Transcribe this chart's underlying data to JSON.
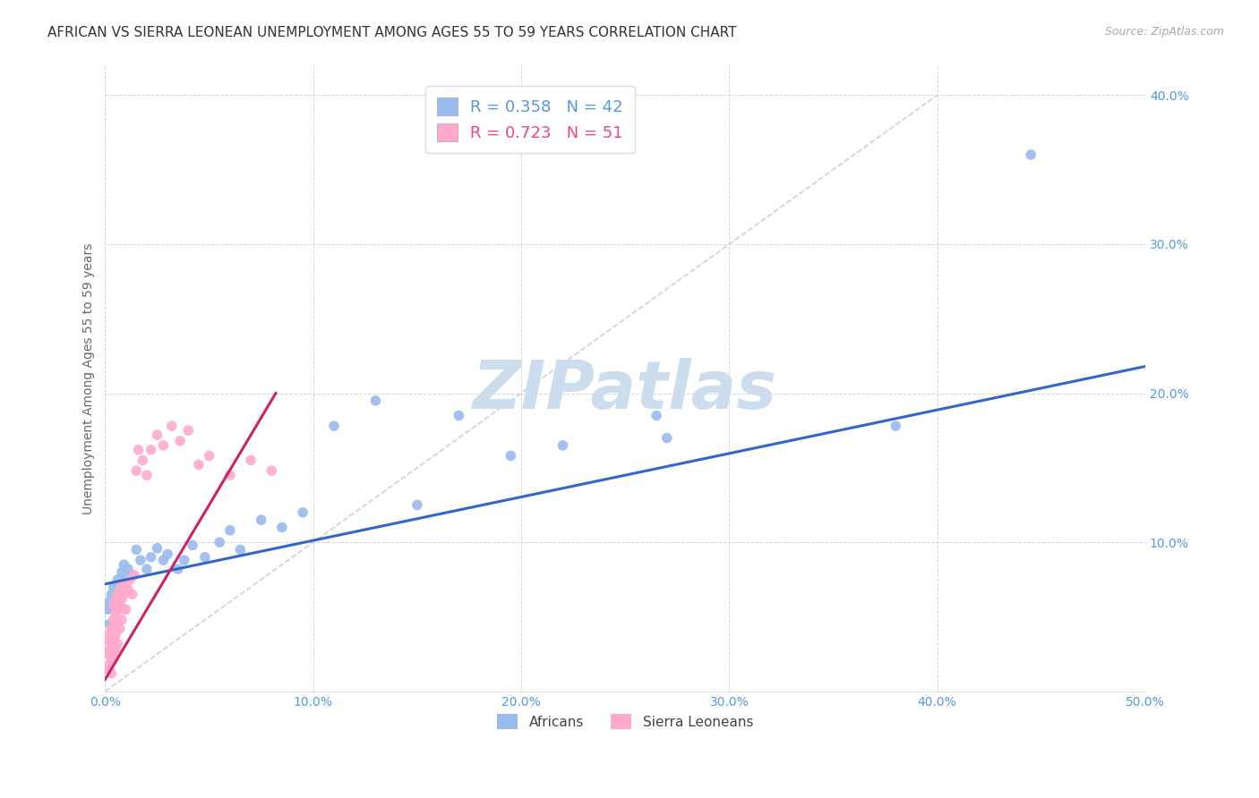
{
  "title": "AFRICAN VS SIERRA LEONEAN UNEMPLOYMENT AMONG AGES 55 TO 59 YEARS CORRELATION CHART",
  "source": "Source: ZipAtlas.com",
  "ylabel": "Unemployment Among Ages 55 to 59 years",
  "xlim": [
    0.0,
    0.5
  ],
  "ylim": [
    0.0,
    0.42
  ],
  "xticks": [
    0.0,
    0.1,
    0.2,
    0.3,
    0.4,
    0.5
  ],
  "yticks": [
    0.0,
    0.1,
    0.2,
    0.3,
    0.4
  ],
  "xtick_labels": [
    "0.0%",
    "10.0%",
    "20.0%",
    "30.0%",
    "40.0%",
    "50.0%"
  ],
  "ytick_labels": [
    "",
    "10.0%",
    "20.0%",
    "30.0%",
    "40.0%"
  ],
  "background_color": "#ffffff",
  "grid_color": "#cccccc",
  "title_color": "#333333",
  "title_fontsize": 11,
  "source_color": "#aaaaaa",
  "R1": "0.358",
  "N1": "42",
  "R2": "0.723",
  "N2": "51",
  "legend_color1": "#5599dd",
  "legend_color2": "#ee4488",
  "africans_color": "#99bbee",
  "sierra_color": "#ffaacc",
  "trendline_african_color": "#3366cc",
  "trendline_sierra_color": "#cc2266",
  "diagonal_color": "#cccccc",
  "watermark_color": "#ccdded",
  "africans_x": [
    0.001,
    0.002,
    0.002,
    0.003,
    0.004,
    0.004,
    0.005,
    0.006,
    0.006,
    0.007,
    0.008,
    0.009,
    0.01,
    0.011,
    0.013,
    0.015,
    0.017,
    0.02,
    0.022,
    0.025,
    0.028,
    0.03,
    0.035,
    0.038,
    0.042,
    0.048,
    0.055,
    0.06,
    0.065,
    0.075,
    0.085,
    0.095,
    0.11,
    0.13,
    0.15,
    0.17,
    0.195,
    0.22,
    0.265,
    0.27,
    0.38,
    0.445
  ],
  "africans_y": [
    0.055,
    0.06,
    0.045,
    0.065,
    0.055,
    0.07,
    0.06,
    0.075,
    0.065,
    0.07,
    0.08,
    0.085,
    0.075,
    0.082,
    0.078,
    0.095,
    0.088,
    0.082,
    0.09,
    0.096,
    0.088,
    0.092,
    0.082,
    0.088,
    0.098,
    0.09,
    0.1,
    0.108,
    0.095,
    0.115,
    0.11,
    0.12,
    0.178,
    0.195,
    0.125,
    0.185,
    0.158,
    0.165,
    0.185,
    0.17,
    0.178,
    0.36
  ],
  "sierra_x": [
    0.001,
    0.001,
    0.001,
    0.002,
    0.002,
    0.002,
    0.003,
    0.003,
    0.003,
    0.003,
    0.004,
    0.004,
    0.004,
    0.004,
    0.005,
    0.005,
    0.005,
    0.005,
    0.006,
    0.006,
    0.006,
    0.006,
    0.007,
    0.007,
    0.007,
    0.008,
    0.008,
    0.008,
    0.009,
    0.009,
    0.01,
    0.01,
    0.011,
    0.012,
    0.013,
    0.014,
    0.015,
    0.016,
    0.018,
    0.02,
    0.022,
    0.025,
    0.028,
    0.032,
    0.036,
    0.04,
    0.045,
    0.05,
    0.06,
    0.07,
    0.08
  ],
  "sierra_y": [
    0.025,
    0.015,
    0.035,
    0.028,
    0.018,
    0.038,
    0.032,
    0.022,
    0.042,
    0.012,
    0.035,
    0.048,
    0.025,
    0.058,
    0.038,
    0.052,
    0.028,
    0.062,
    0.045,
    0.055,
    0.032,
    0.065,
    0.058,
    0.042,
    0.068,
    0.062,
    0.048,
    0.072,
    0.055,
    0.065,
    0.072,
    0.055,
    0.068,
    0.075,
    0.065,
    0.078,
    0.148,
    0.162,
    0.155,
    0.145,
    0.162,
    0.172,
    0.165,
    0.178,
    0.168,
    0.175,
    0.152,
    0.158,
    0.145,
    0.155,
    0.148
  ],
  "trendline_african_x0": 0.0,
  "trendline_african_x1": 0.5,
  "trendline_african_y0": 0.072,
  "trendline_african_y1": 0.218,
  "trendline_sierra_x0": 0.0,
  "trendline_sierra_x1": 0.082,
  "trendline_sierra_y0": 0.008,
  "trendline_sierra_y1": 0.2
}
